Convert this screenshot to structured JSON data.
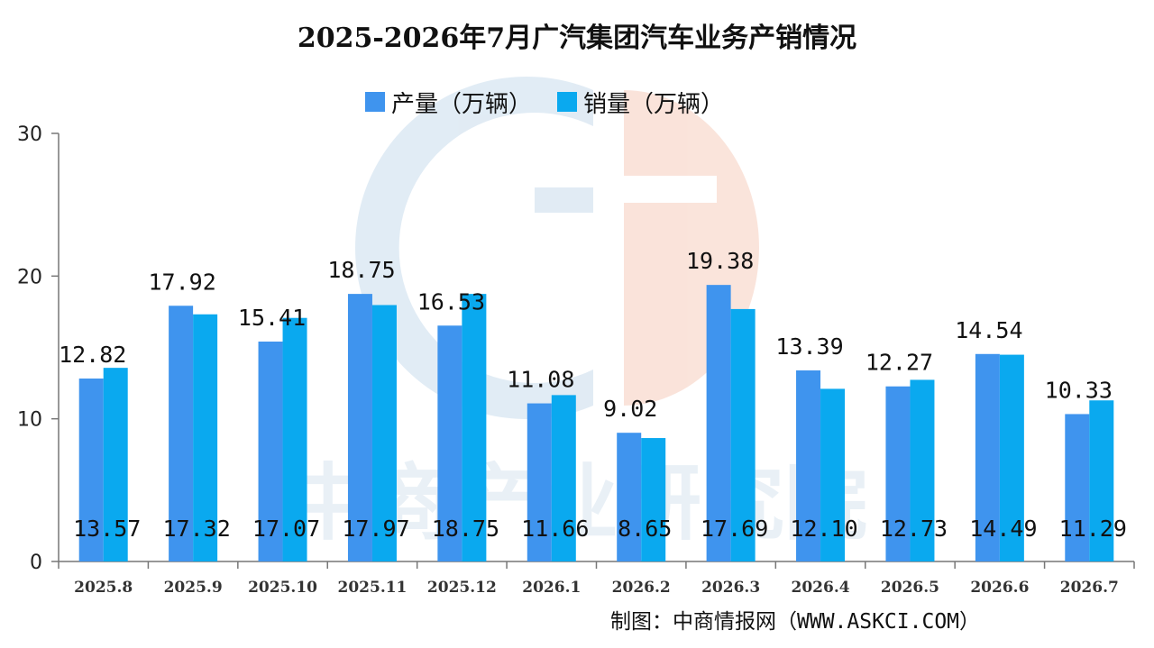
{
  "chart_data": {
    "type": "bar",
    "title": "2025-2026年7月广汽集团汽车业务产销情况",
    "categories": [
      "2025.8",
      "2025.9",
      "2025.10",
      "2025.11",
      "2025.12",
      "2026.1",
      "2026.2",
      "2026.3",
      "2026.4",
      "2026.5",
      "2026.6",
      "2026.7"
    ],
    "series": [
      {
        "name": "产量（万辆）",
        "color": "#3f94ee",
        "values": [
          12.82,
          17.92,
          15.41,
          18.75,
          16.53,
          11.08,
          9.02,
          19.38,
          13.39,
          12.27,
          14.54,
          10.33
        ]
      },
      {
        "name": "销量（万辆）",
        "color": "#0aa9ef",
        "values": [
          13.57,
          17.32,
          17.07,
          17.97,
          18.75,
          11.66,
          8.65,
          17.69,
          12.1,
          12.73,
          14.49,
          11.29
        ]
      }
    ],
    "production_labels": [
      "12.82",
      "17.92",
      "15.41",
      "18.75",
      "16.53",
      "11.08",
      "9.02",
      "19.38",
      "13.39",
      "12.27",
      "14.54",
      "10.33"
    ],
    "sales_labels": [
      "13.57",
      "17.32",
      "17.07",
      "17.97",
      "18.75",
      "11.66",
      "8.65",
      "17.69",
      "12.10",
      "12.73",
      "14.49",
      "11.29"
    ],
    "ylim": [
      0,
      30
    ],
    "yticks": [
      "0",
      "10",
      "20",
      "30"
    ],
    "legend_position": "top-center",
    "grid": false
  },
  "watermark_text": "中商产业研究院",
  "credit": "制图：中商情报网（WWW.ASKCI.COM）"
}
